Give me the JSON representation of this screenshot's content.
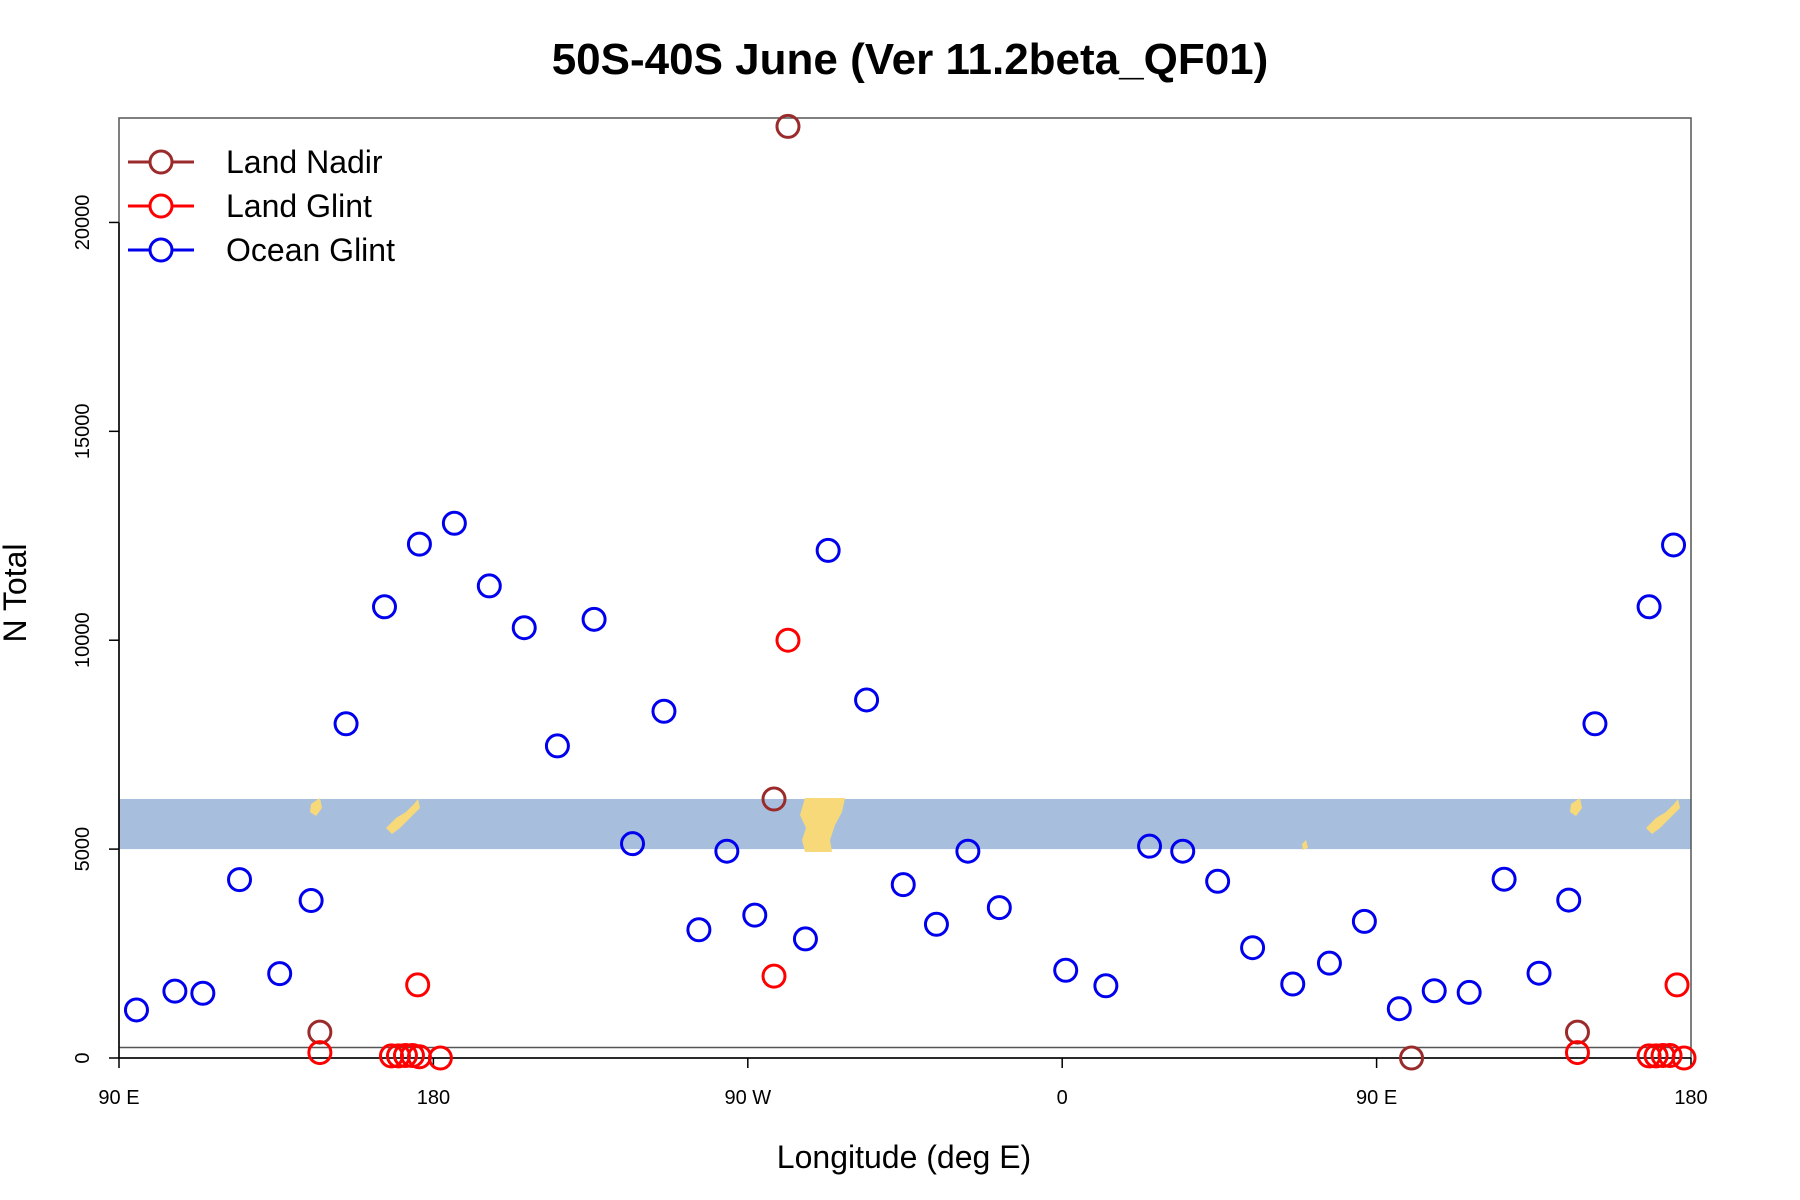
{
  "chart_data": {
    "type": "scatter",
    "title": "50S-40S June (Ver 11.2beta_QF01)",
    "xlabel": "Longitude (deg E)",
    "ylabel": "N Total",
    "xlim": [
      90,
      540
    ],
    "ylim": [
      0,
      22500
    ],
    "x_ticks": [
      {
        "value": 90,
        "label": "90 E"
      },
      {
        "value": 180,
        "label": "180"
      },
      {
        "value": 270,
        "label": "90 W"
      },
      {
        "value": 360,
        "label": "0"
      },
      {
        "value": 450,
        "label": "90 E"
      },
      {
        "value": 540,
        "label": "180"
      }
    ],
    "y_ticks": [
      {
        "value": 0,
        "label": "0"
      },
      {
        "value": 5000,
        "label": "5000"
      },
      {
        "value": 10000,
        "label": "10000"
      },
      {
        "value": 15000,
        "label": "15000"
      },
      {
        "value": 20000,
        "label": "20000"
      }
    ],
    "grid": false,
    "legend_position": "top-left",
    "reference_line_y": 250,
    "map_band": {
      "y_range": [
        5000,
        6200
      ],
      "ocean_color": "#a7bfdd",
      "land_color": "#f7d97a"
    },
    "series": [
      {
        "name": "Land Nadir",
        "color": "#9b2b2b",
        "x": [
          147.5,
          277.5,
          281.5,
          460,
          507.5
        ],
        "y": [
          620,
          6200,
          22300,
          0,
          620
        ]
      },
      {
        "name": "Land Glint",
        "color": "#ff0000",
        "x": [
          147.5,
          168,
          170,
          172,
          174,
          175.5,
          176,
          182,
          277.5,
          281.5,
          507.5,
          528,
          530,
          532,
          534,
          536,
          538
        ],
        "y": [
          130,
          50,
          50,
          60,
          60,
          1750,
          30,
          0,
          1960,
          10000,
          130,
          50,
          50,
          60,
          60,
          1750,
          0
        ]
      },
      {
        "name": "Ocean Glint",
        "color": "#0000ee",
        "x": [
          95,
          106,
          114,
          124.5,
          136,
          145,
          155,
          166,
          176,
          186,
          196,
          206,
          215.5,
          226,
          237,
          246,
          256,
          264,
          272,
          286.5,
          293,
          304,
          314.5,
          324,
          333,
          342,
          361,
          372.5,
          385,
          394.5,
          404.5,
          414.5,
          426,
          436.5,
          446.5,
          456.5,
          466.5,
          476.5,
          486.5,
          496.5,
          505,
          512.5,
          528,
          535
        ],
        "y": [
          1150,
          1600,
          1550,
          4270,
          2020,
          3770,
          8000,
          10800,
          12300,
          12800,
          11300,
          10300,
          7470,
          10500,
          5130,
          8300,
          3070,
          4950,
          3420,
          2850,
          12150,
          8570,
          4150,
          3200,
          4950,
          3600,
          2100,
          1730,
          5070,
          4950,
          4230,
          2640,
          1770,
          2270,
          3270,
          1180,
          1610,
          1570,
          4280,
          2030,
          3780,
          8000,
          10800,
          12280
        ]
      }
    ]
  }
}
